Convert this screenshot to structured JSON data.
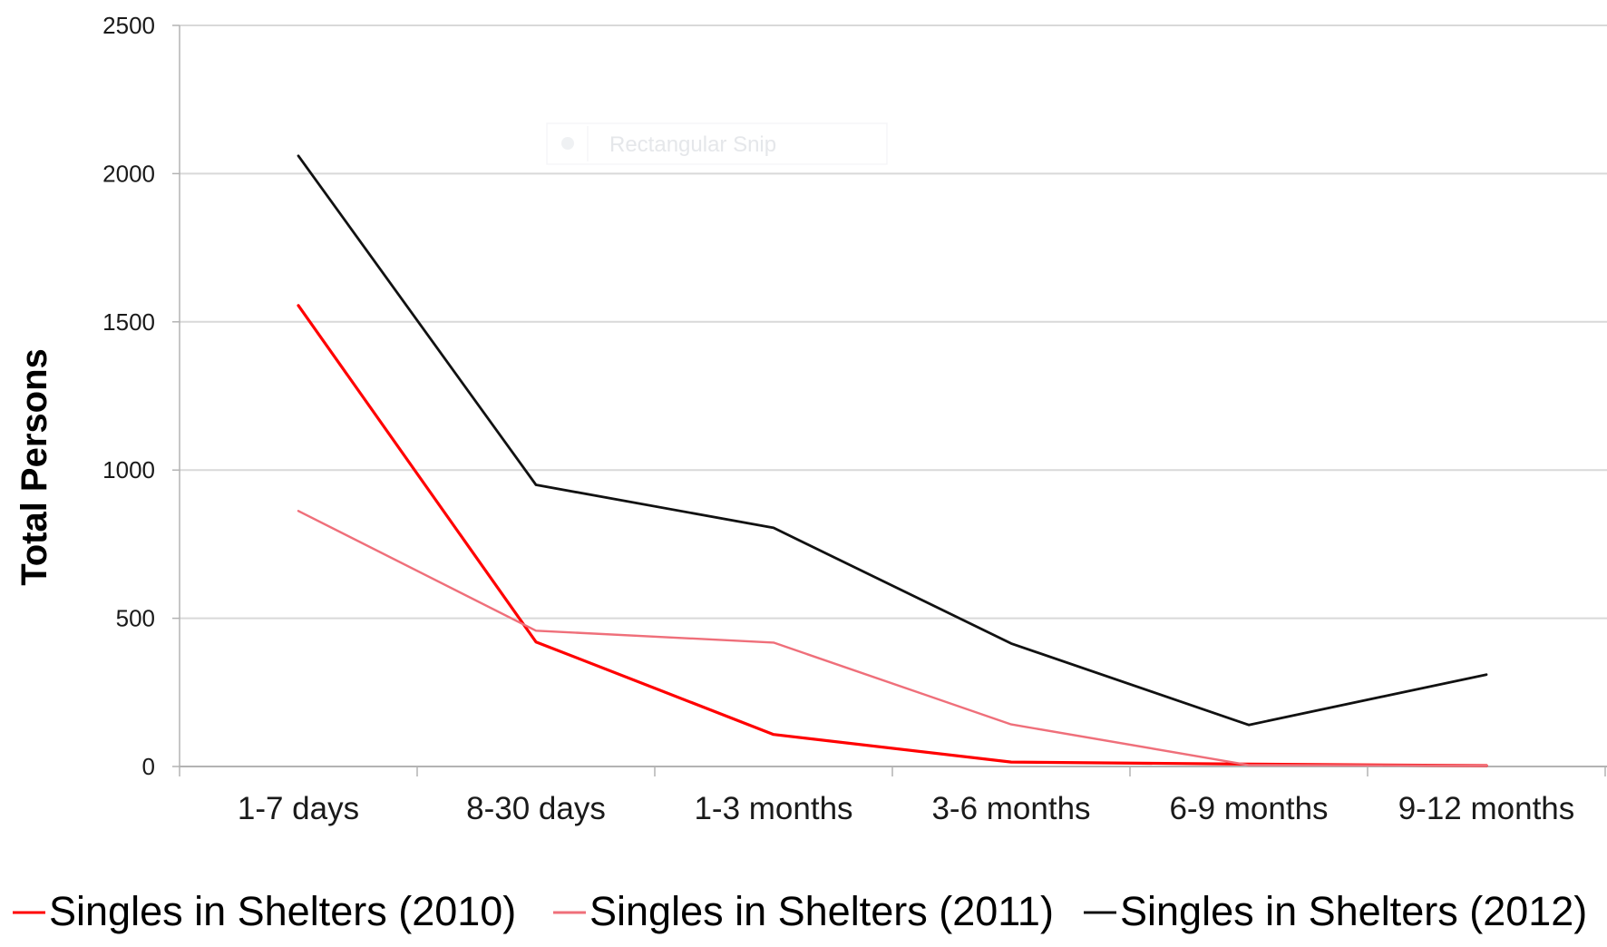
{
  "chart_data": {
    "type": "line",
    "ylabel": "Total Persons",
    "ylim": [
      0,
      2500
    ],
    "yticks": [
      "0",
      "500",
      "1000",
      "1500",
      "2000",
      "2500"
    ],
    "categories": [
      "1-7 days",
      "8-30 days",
      "1-3 months",
      "3-6 months",
      "6-9 months",
      "9-12 months"
    ],
    "grid": true,
    "legend_position": "bottom",
    "series": [
      {
        "name": "Singles in Shelters (2010)",
        "color": "#ff0000",
        "values": [
          1555,
          420,
          108,
          15,
          8,
          3
        ]
      },
      {
        "name": "Singles in Shelters (2011)",
        "color": "#ef6f7a",
        "values": [
          862,
          458,
          418,
          142,
          5,
          3
        ]
      },
      {
        "name": "Singles in Shelters (2012)",
        "color": "#111111",
        "values": [
          2060,
          950,
          805,
          415,
          140,
          310
        ]
      }
    ]
  },
  "overlay": {
    "snip_label": "Rectangular Snip",
    "snip_icon": "circle-icon"
  }
}
